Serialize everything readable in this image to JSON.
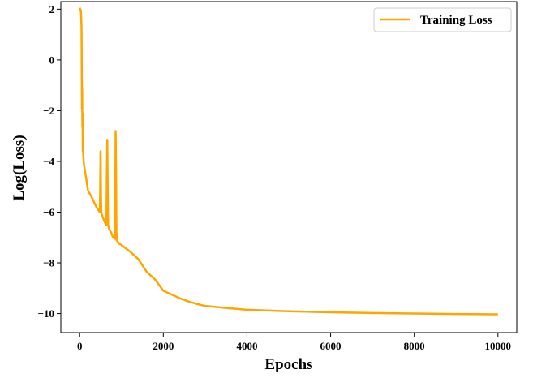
{
  "chart_data": {
    "type": "line",
    "title": "",
    "xlabel": "Epochs",
    "ylabel": "Log(Loss)",
    "xlim": [
      -450,
      10450
    ],
    "ylim": [
      -10.75,
      2.3
    ],
    "xticks": [
      0,
      2000,
      4000,
      6000,
      8000,
      10000
    ],
    "xtick_labels": [
      "0",
      "2000",
      "4000",
      "6000",
      "8000",
      "10000"
    ],
    "yticks": [
      2,
      0,
      -2,
      -4,
      -6,
      -8,
      -10
    ],
    "ytick_labels": [
      "2",
      "0",
      "−2",
      "−4",
      "−6",
      "−8",
      "−10"
    ],
    "grid": false,
    "legend": {
      "position": "upper-right",
      "entries": [
        "Training Loss"
      ]
    },
    "colors": {
      "series": "#FFA500",
      "axes": "#000000"
    },
    "series": [
      {
        "name": "Training Loss",
        "x": [
          0,
          30,
          45,
          55,
          60,
          65,
          70,
          75,
          80,
          85,
          100,
          140,
          200,
          250,
          300,
          400,
          480,
          490,
          500,
          510,
          520,
          540,
          600,
          640,
          650,
          660,
          670,
          680,
          700,
          750,
          800,
          840,
          850,
          860,
          870,
          880,
          890,
          900,
          950,
          1000,
          1200,
          1400,
          1600,
          1800,
          2000,
          2200,
          2400,
          2600,
          2800,
          3000,
          3500,
          4000,
          5000,
          6000,
          7000,
          8000,
          9000,
          10000
        ],
        "y": [
          2.05,
          1.95,
          1.3,
          -1.9,
          -1.15,
          -2.6,
          -2.1,
          -3.6,
          -2.9,
          -3.7,
          -4.1,
          -4.5,
          -5.15,
          -5.3,
          -5.45,
          -5.8,
          -6.0,
          -5.2,
          -3.6,
          -5.4,
          -6.05,
          -6.15,
          -6.4,
          -6.5,
          -4.5,
          -3.15,
          -5.0,
          -6.5,
          -6.65,
          -6.8,
          -7.0,
          -7.05,
          -5.6,
          -2.8,
          -4.3,
          -7.1,
          -6.9,
          -7.15,
          -7.25,
          -7.3,
          -7.55,
          -7.85,
          -8.35,
          -8.65,
          -9.1,
          -9.25,
          -9.4,
          -9.52,
          -9.62,
          -9.7,
          -9.78,
          -9.85,
          -9.91,
          -9.95,
          -9.98,
          -10.0,
          -10.02,
          -10.03
        ]
      }
    ]
  }
}
